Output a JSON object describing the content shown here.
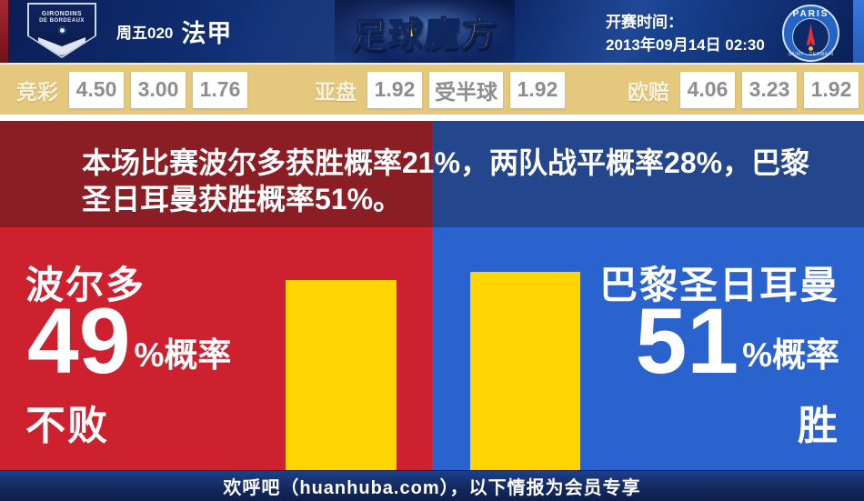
{
  "header": {
    "match_number": "周五020",
    "league": "法甲",
    "site_logo": "足球魔方",
    "kickoff_label": "开赛时间：",
    "kickoff_time": "2013年09月14日 02:30",
    "home_badge": {
      "line1": "GIRONDINS",
      "line2": "DE BORDEAUX"
    },
    "away_badge": {
      "line1": "PARIS",
      "line2": "SAINT - GERMAIN"
    }
  },
  "odds": {
    "sports_lottery": {
      "label": "竞彩",
      "values": [
        "4.50",
        "3.00",
        "1.76"
      ]
    },
    "asian_handicap": {
      "label": "亚盘",
      "values": [
        "1.92",
        "受半球",
        "1.92"
      ]
    },
    "european_odds": {
      "label": "欧赔",
      "values": [
        "4.06",
        "3.23",
        "1.92"
      ]
    }
  },
  "banner": {
    "line1": "本场比赛波尔多获胜概率21%，两队战平概率28%，巴黎",
    "line2": "圣日耳曼获胜概率51%。"
  },
  "prediction": {
    "home": {
      "team": "波尔多",
      "percent": "49",
      "suffix": "%概率",
      "outcome": "不败",
      "value": 49
    },
    "away": {
      "team": "巴黎圣日耳曼",
      "percent": "51",
      "suffix": "%概率",
      "outcome": "胜",
      "value": 51
    }
  },
  "footer": {
    "text": "欢呼吧（huanhuba.com），以下情报为会员专享"
  },
  "chart_data": {
    "type": "bar",
    "categories": [
      "波尔多 不败",
      "巴黎圣日耳曼 胜"
    ],
    "values": [
      49,
      51
    ],
    "unit": "%",
    "bar_color": "#ffd400",
    "legend_position": "none",
    "annotations": [
      "波尔多获胜概率21%",
      "两队战平概率28%",
      "巴黎圣日耳曼获胜概率51%"
    ]
  },
  "colors": {
    "home_red": "#cd2130",
    "away_blue": "#2b63ce",
    "banner_red": "#8b1d24",
    "banner_blue": "#24468c",
    "bar_yellow": "#ffd400",
    "odds_bg": "#e4c87e",
    "odds_value_gray": "#8e8e8e",
    "footer_navy": "#14295e",
    "logo_gold": "#ffc91e"
  }
}
